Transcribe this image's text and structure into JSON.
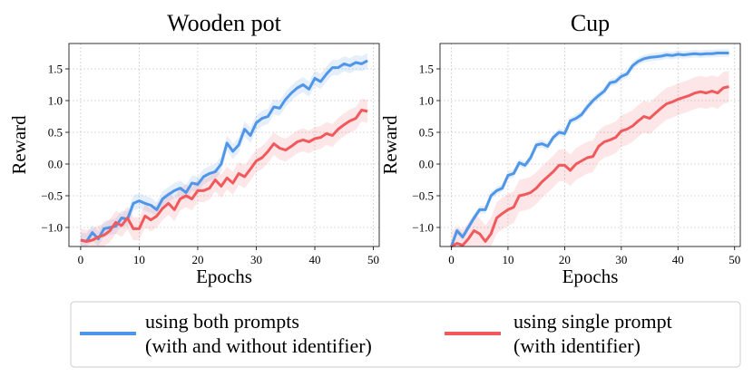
{
  "chart_data": [
    {
      "type": "line",
      "title": "Wooden pot",
      "xlabel": "Epochs",
      "ylabel": "Reward",
      "xlim": [
        -2,
        51
      ],
      "ylim": [
        -1.3,
        1.9
      ],
      "xticks": [
        0,
        10,
        20,
        30,
        40,
        50
      ],
      "yticks": [
        -1.0,
        -0.5,
        0.0,
        0.5,
        1.0,
        1.5
      ],
      "grid": true,
      "series": [
        {
          "name": "using both prompts (with and without identifier)",
          "color": "#4f96e8",
          "x": [
            0,
            1,
            2,
            3,
            4,
            5,
            6,
            7,
            8,
            9,
            10,
            11,
            12,
            13,
            14,
            15,
            16,
            17,
            18,
            19,
            20,
            21,
            22,
            23,
            24,
            25,
            26,
            27,
            28,
            29,
            30,
            31,
            32,
            33,
            34,
            35,
            36,
            37,
            38,
            39,
            40,
            41,
            42,
            43,
            44,
            45,
            46,
            47,
            48,
            49
          ],
          "values": [
            -1.2,
            -1.22,
            -1.08,
            -1.18,
            -1.02,
            -1.0,
            -0.98,
            -0.85,
            -0.87,
            -0.62,
            -0.58,
            -0.62,
            -0.65,
            -0.72,
            -0.55,
            -0.48,
            -0.42,
            -0.38,
            -0.45,
            -0.3,
            -0.32,
            -0.2,
            -0.15,
            -0.12,
            0.0,
            0.33,
            0.2,
            0.3,
            0.55,
            0.45,
            0.65,
            0.72,
            0.75,
            0.9,
            0.88,
            1.02,
            1.12,
            1.2,
            1.25,
            1.18,
            1.35,
            1.3,
            1.42,
            1.52,
            1.52,
            1.58,
            1.55,
            1.6,
            1.58,
            1.63
          ],
          "band": 0.12
        },
        {
          "name": "using single prompt (with identifier)",
          "color": "#f2595d",
          "x": [
            0,
            1,
            2,
            3,
            4,
            5,
            6,
            7,
            8,
            9,
            10,
            11,
            12,
            13,
            14,
            15,
            16,
            17,
            18,
            19,
            20,
            21,
            22,
            23,
            24,
            25,
            26,
            27,
            28,
            29,
            30,
            31,
            32,
            33,
            34,
            35,
            36,
            37,
            38,
            39,
            40,
            41,
            42,
            43,
            44,
            45,
            46,
            47,
            48,
            49
          ],
          "values": [
            -1.2,
            -1.22,
            -1.2,
            -1.15,
            -1.12,
            -1.05,
            -0.92,
            -0.97,
            -0.85,
            -1.02,
            -1.02,
            -0.82,
            -0.88,
            -0.82,
            -0.7,
            -0.62,
            -0.72,
            -0.55,
            -0.5,
            -0.55,
            -0.42,
            -0.42,
            -0.38,
            -0.25,
            -0.35,
            -0.22,
            -0.3,
            -0.15,
            -0.2,
            -0.08,
            0.05,
            0.1,
            0.2,
            0.32,
            0.25,
            0.22,
            0.28,
            0.35,
            0.38,
            0.35,
            0.4,
            0.42,
            0.48,
            0.45,
            0.55,
            0.62,
            0.68,
            0.72,
            0.85,
            0.83
          ],
          "band": 0.18
        }
      ]
    },
    {
      "type": "line",
      "title": "Cup",
      "xlabel": "Epochs",
      "ylabel": "Reward",
      "xlim": [
        -2,
        51
      ],
      "ylim": [
        -1.3,
        1.9
      ],
      "xticks": [
        0,
        10,
        20,
        30,
        40,
        50
      ],
      "yticks": [
        -1.0,
        -0.5,
        0.0,
        0.5,
        1.0,
        1.5
      ],
      "grid": true,
      "series": [
        {
          "name": "using both prompts (with and without identifier)",
          "color": "#4f96e8",
          "x": [
            0,
            1,
            2,
            3,
            4,
            5,
            6,
            7,
            8,
            9,
            10,
            11,
            12,
            13,
            14,
            15,
            16,
            17,
            18,
            19,
            20,
            21,
            22,
            23,
            24,
            25,
            26,
            27,
            28,
            29,
            30,
            31,
            32,
            33,
            34,
            35,
            36,
            37,
            38,
            39,
            40,
            41,
            42,
            43,
            44,
            45,
            46,
            47,
            48,
            49
          ],
          "values": [
            -1.3,
            -1.05,
            -1.15,
            -1.0,
            -0.85,
            -0.72,
            -0.72,
            -0.5,
            -0.42,
            -0.38,
            -0.18,
            -0.15,
            0.02,
            -0.02,
            0.1,
            0.3,
            0.32,
            0.28,
            0.42,
            0.5,
            0.48,
            0.68,
            0.72,
            0.78,
            0.9,
            1.0,
            1.08,
            1.15,
            1.28,
            1.3,
            1.38,
            1.42,
            1.55,
            1.62,
            1.66,
            1.68,
            1.69,
            1.7,
            1.72,
            1.71,
            1.73,
            1.72,
            1.73,
            1.74,
            1.73,
            1.74,
            1.74,
            1.75,
            1.75,
            1.75
          ],
          "band": 0.06
        },
        {
          "name": "using single prompt (with identifier)",
          "color": "#f2595d",
          "x": [
            0,
            1,
            2,
            3,
            4,
            5,
            6,
            7,
            8,
            9,
            10,
            11,
            12,
            13,
            14,
            15,
            16,
            17,
            18,
            19,
            20,
            21,
            22,
            23,
            24,
            25,
            26,
            27,
            28,
            29,
            30,
            31,
            32,
            33,
            34,
            35,
            36,
            37,
            38,
            39,
            40,
            41,
            42,
            43,
            44,
            45,
            46,
            47,
            48,
            49
          ],
          "values": [
            -1.3,
            -1.25,
            -1.28,
            -1.18,
            -1.05,
            -1.1,
            -1.22,
            -1.1,
            -0.85,
            -0.78,
            -0.72,
            -0.68,
            -0.5,
            -0.48,
            -0.45,
            -0.38,
            -0.28,
            -0.2,
            -0.12,
            -0.02,
            -0.02,
            -0.1,
            0.0,
            0.05,
            0.1,
            0.12,
            0.28,
            0.35,
            0.38,
            0.42,
            0.52,
            0.55,
            0.6,
            0.68,
            0.75,
            0.72,
            0.8,
            0.88,
            0.95,
            0.98,
            1.02,
            1.05,
            1.08,
            1.12,
            1.14,
            1.12,
            1.15,
            1.12,
            1.2,
            1.22
          ],
          "band": 0.25
        }
      ]
    }
  ],
  "legend": {
    "items": [
      {
        "line1": "using both prompts",
        "line2": "(with and without identifier)",
        "color": "#4f96e8"
      },
      {
        "line1": "using single prompt",
        "line2": "(with identifier)",
        "color": "#f2595d"
      }
    ]
  }
}
